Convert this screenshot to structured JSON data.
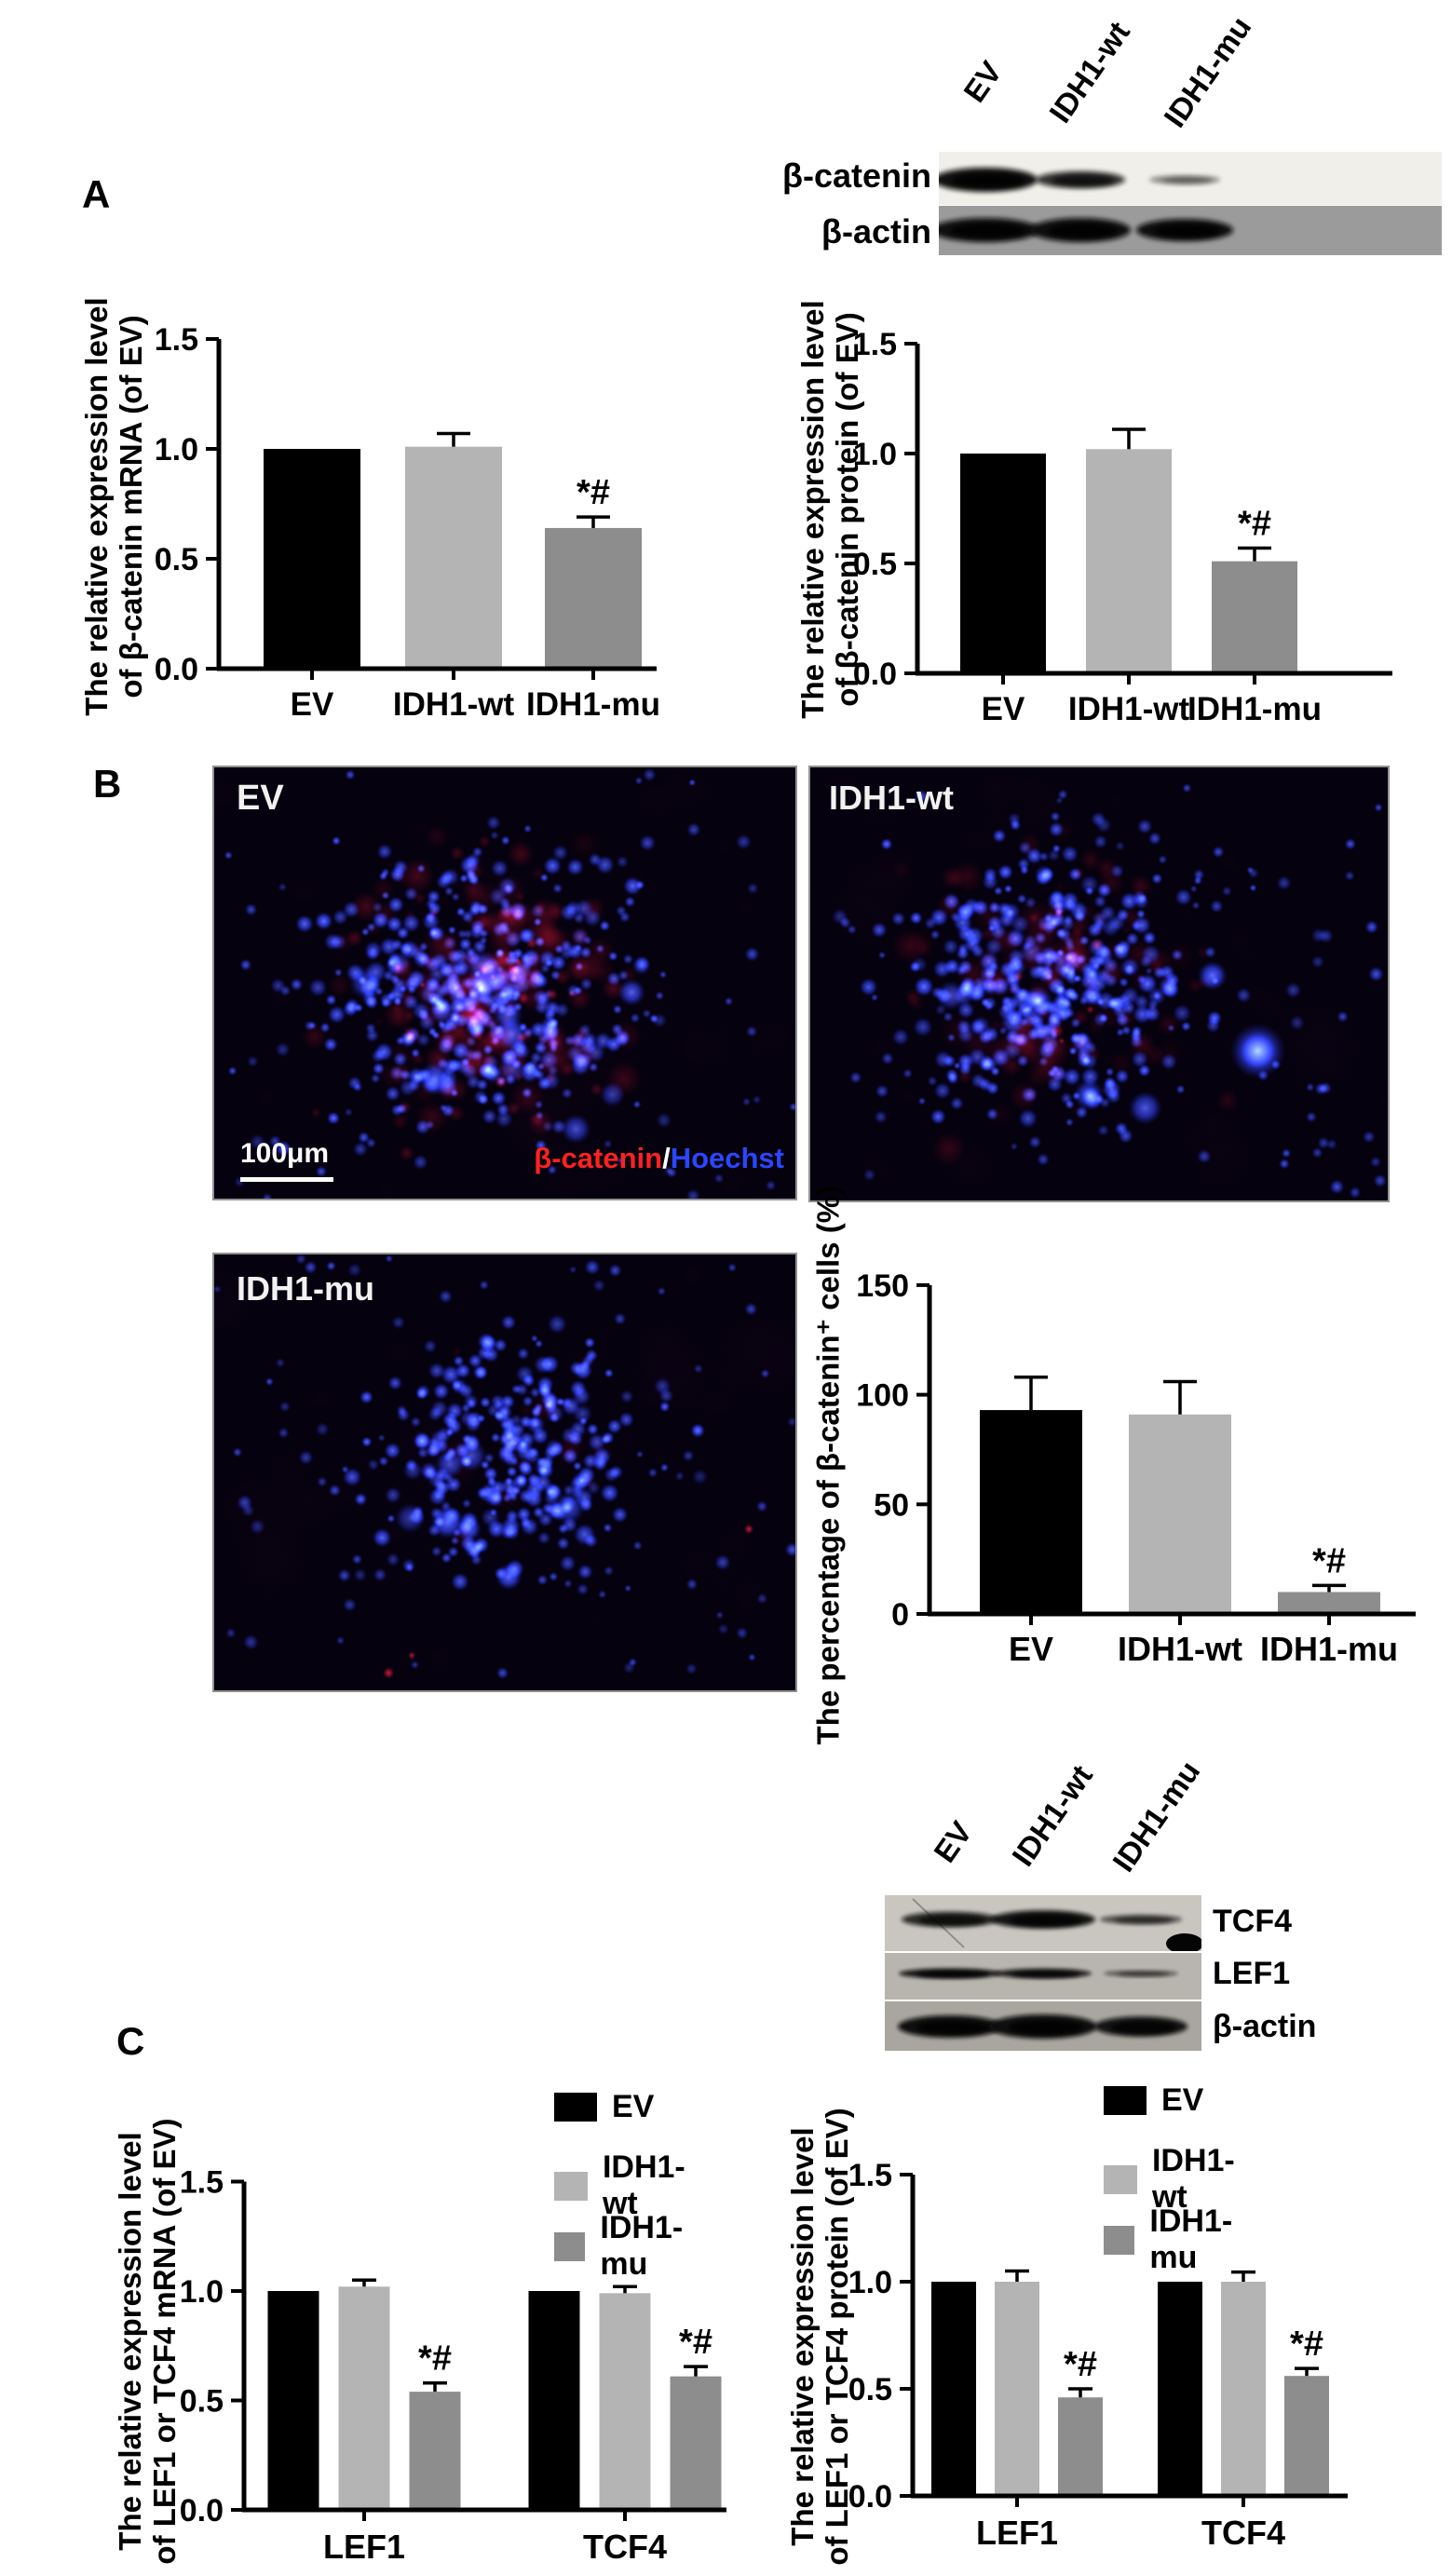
{
  "figure": {
    "panel_labels": {
      "A": "A",
      "B": "B",
      "C": "C"
    }
  },
  "groups": [
    "EV",
    "IDH1-wt",
    "IDH1-mu"
  ],
  "colors": {
    "ev_bar": "#000000",
    "idh1_wt_bar": "#b4b4b4",
    "idh1_mu_bar": "#8d8d8d",
    "red_stain": "#ff2121",
    "hoechst_blue": "#2b46ff",
    "overlay_white": "#ffffff"
  },
  "western_blot_top": {
    "lanes": [
      "EV",
      "IDH1-wt",
      "IDH1-mu"
    ],
    "rows": [
      {
        "label": "β-catenin",
        "band_intensities": [
          1.0,
          0.78,
          0.32
        ]
      },
      {
        "label": "β-actin",
        "band_intensities": [
          1.0,
          1.0,
          1.0
        ]
      }
    ]
  },
  "western_blot_c": {
    "lanes": [
      "EV",
      "IDH1-wt",
      "IDH1-mu"
    ],
    "rows": [
      {
        "label": "TCF4",
        "band_intensities": [
          0.8,
          0.95,
          0.55
        ]
      },
      {
        "label": "LEF1",
        "band_intensities": [
          0.95,
          0.9,
          0.45
        ]
      },
      {
        "label": "β-actin",
        "band_intensities": [
          1.0,
          1.0,
          0.95
        ]
      }
    ]
  },
  "microscopy": {
    "scale_bar": "100μm",
    "stain_label": {
      "red": "β-catenin",
      "separator": "/",
      "blue": "Hoechst"
    },
    "images": [
      {
        "label": "EV",
        "red_level": "high"
      },
      {
        "label": "IDH1-wt",
        "red_level": "medium"
      },
      {
        "label": "IDH1-mu",
        "red_level": "low"
      }
    ]
  },
  "legend": {
    "entries": [
      {
        "label": "EV",
        "color": "#000000"
      },
      {
        "label": "IDH1-wt",
        "color": "#b4b4b4"
      },
      {
        "label": "IDH1-mu",
        "color": "#8d8d8d"
      }
    ]
  },
  "chart_data": [
    {
      "id": "bcatenin_mrna",
      "type": "bar",
      "ylabel_lines": [
        "The relative expression level",
        "of β-catenin mRNA (of EV)"
      ],
      "categories": [
        "EV",
        "IDH1-wt",
        "IDH1-mu"
      ],
      "values": [
        1.0,
        1.01,
        0.64
      ],
      "errors": [
        0,
        0.06,
        0.05
      ],
      "sig_labels": [
        "",
        "",
        "*#"
      ],
      "ylim": [
        0,
        1.5
      ],
      "yticks": [
        0,
        0.5,
        1.0,
        1.5
      ],
      "tick_decimals": 1,
      "grid": false,
      "legend_position": "none",
      "bar_colors": [
        "#000000",
        "#b4b4b4",
        "#8d8d8d"
      ]
    },
    {
      "id": "bcatenin_protein",
      "type": "bar",
      "ylabel_lines": [
        "The relative expression level",
        "of β-catenin protein (of EV)"
      ],
      "categories": [
        "EV",
        "IDH1-wt",
        "IDH1-mu"
      ],
      "values": [
        1.0,
        1.02,
        0.51
      ],
      "errors": [
        0,
        0.09,
        0.06
      ],
      "sig_labels": [
        "",
        "",
        "*#"
      ],
      "ylim": [
        0,
        1.5
      ],
      "yticks": [
        0,
        0.5,
        1.0,
        1.5
      ],
      "tick_decimals": 1,
      "grid": false,
      "legend_position": "none",
      "bar_colors": [
        "#000000",
        "#b4b4b4",
        "#8d8d8d"
      ]
    },
    {
      "id": "percent_bcatenin_cells",
      "type": "bar",
      "ylabel_lines": [
        "The percentage of β-catenin⁺ cells (%)"
      ],
      "categories": [
        "EV",
        "IDH1-wt",
        "IDH1-mu"
      ],
      "values": [
        93,
        91,
        10
      ],
      "errors": [
        15,
        15,
        3
      ],
      "sig_labels": [
        "",
        "",
        "*#"
      ],
      "ylim": [
        0,
        150
      ],
      "yticks": [
        0,
        50,
        100,
        150
      ],
      "tick_decimals": 0,
      "grid": false,
      "legend_position": "none",
      "bar_colors": [
        "#000000",
        "#b4b4b4",
        "#8d8d8d"
      ]
    },
    {
      "id": "lef1_tcf4_mrna",
      "type": "bar",
      "ylabel_lines": [
        "The relative expression level",
        "of LEF1 or TCF4 mRNA (of EV)"
      ],
      "categories": [
        "LEF1",
        "TCF4"
      ],
      "series": [
        {
          "name": "EV",
          "color": "#000000",
          "values": [
            1.0,
            1.0
          ],
          "errors": [
            0,
            0
          ],
          "sig": [
            "",
            ""
          ]
        },
        {
          "name": "IDH1-wt",
          "color": "#b4b4b4",
          "values": [
            1.02,
            0.99
          ],
          "errors": [
            0.03,
            0.03
          ],
          "sig": [
            "",
            ""
          ]
        },
        {
          "name": "IDH1-mu",
          "color": "#8d8d8d",
          "values": [
            0.54,
            0.61
          ],
          "errors": [
            0.04,
            0.045
          ],
          "sig": [
            "*#",
            "*#"
          ]
        }
      ],
      "ylim": [
        0,
        1.5
      ],
      "yticks": [
        0,
        0.5,
        1.0,
        1.5
      ],
      "tick_decimals": 1,
      "grid": false,
      "legend_position": "top-right"
    },
    {
      "id": "lef1_tcf4_protein",
      "type": "bar",
      "ylabel_lines": [
        "The relative expression level",
        "of LEF1 or TCF4 protein (of EV)"
      ],
      "categories": [
        "LEF1",
        "TCF4"
      ],
      "series": [
        {
          "name": "EV",
          "color": "#000000",
          "values": [
            1.0,
            1.0
          ],
          "errors": [
            0,
            0
          ],
          "sig": [
            "",
            ""
          ]
        },
        {
          "name": "IDH1-wt",
          "color": "#b4b4b4",
          "values": [
            1.0,
            1.0
          ],
          "errors": [
            0.05,
            0.045
          ],
          "sig": [
            "",
            ""
          ]
        },
        {
          "name": "IDH1-mu",
          "color": "#8d8d8d",
          "values": [
            0.46,
            0.56
          ],
          "errors": [
            0.04,
            0.035
          ],
          "sig": [
            "*#",
            "*#"
          ]
        }
      ],
      "ylim": [
        0,
        1.5
      ],
      "yticks": [
        0,
        0.5,
        1.0,
        1.5
      ],
      "tick_decimals": 1,
      "grid": false,
      "legend_position": "top-right"
    }
  ],
  "annotations": {
    "significance": "*#"
  }
}
